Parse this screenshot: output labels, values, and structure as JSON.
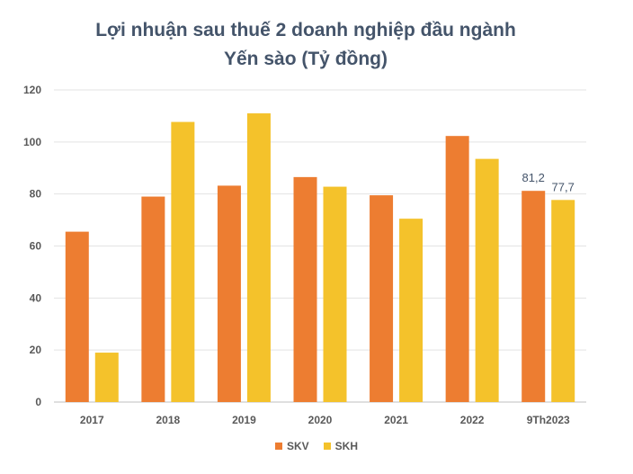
{
  "chart_data": {
    "type": "bar",
    "title_line1": "Lợi nhuận sau thuế 2 doanh nghiệp đầu ngành",
    "title_line2": "Yến sào (Tỷ đồng)",
    "categories": [
      "2017",
      "2018",
      "2019",
      "2020",
      "2021",
      "2022",
      "9Th2023"
    ],
    "series": [
      {
        "name": "SKV",
        "color": "#ed7d31",
        "values": [
          65.5,
          79.0,
          83.2,
          86.5,
          79.5,
          102.3,
          81.2
        ]
      },
      {
        "name": "SKH",
        "color": "#f4c22b",
        "values": [
          19.0,
          107.7,
          111.0,
          82.8,
          70.5,
          93.5,
          77.7
        ]
      }
    ],
    "data_labels": [
      {
        "series": 0,
        "index": 6,
        "text": "81,2"
      },
      {
        "series": 1,
        "index": 6,
        "text": "77,7"
      }
    ],
    "ylim": [
      0,
      120
    ],
    "yticks": [
      0,
      20,
      40,
      60,
      80,
      100,
      120
    ],
    "grid": true,
    "legend_position": "bottom",
    "xlabel": "",
    "ylabel": ""
  }
}
